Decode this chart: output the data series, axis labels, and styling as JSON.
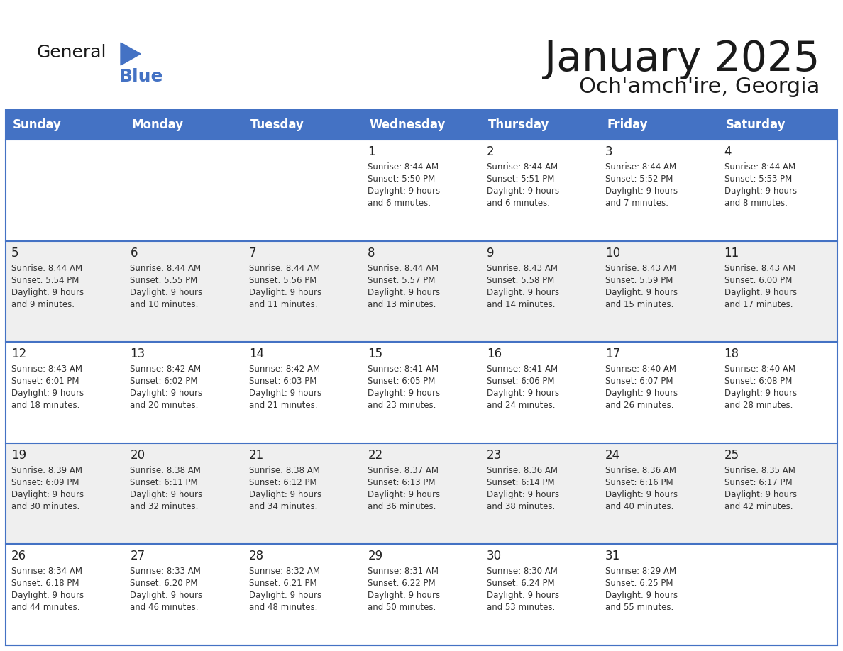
{
  "title": "January 2025",
  "subtitle": "Och'amch'ire, Georgia",
  "days_of_week": [
    "Sunday",
    "Monday",
    "Tuesday",
    "Wednesday",
    "Thursday",
    "Friday",
    "Saturday"
  ],
  "header_bg_color": "#4472C4",
  "header_text_color": "#FFFFFF",
  "cell_bg_color": "#FFFFFF",
  "alt_cell_bg_color": "#EFEFEF",
  "border_color": "#4472C4",
  "day_num_color": "#222222",
  "text_color": "#333333",
  "title_color": "#1a1a1a",
  "logo_general_color": "#1a1a1a",
  "logo_blue_color": "#4472C4",
  "calendar_data": [
    [
      {
        "day": null,
        "sunrise": null,
        "sunset": null,
        "daylight": null
      },
      {
        "day": null,
        "sunrise": null,
        "sunset": null,
        "daylight": null
      },
      {
        "day": null,
        "sunrise": null,
        "sunset": null,
        "daylight": null
      },
      {
        "day": 1,
        "sunrise": "8:44 AM",
        "sunset": "5:50 PM",
        "daylight": "9 hours\nand 6 minutes."
      },
      {
        "day": 2,
        "sunrise": "8:44 AM",
        "sunset": "5:51 PM",
        "daylight": "9 hours\nand 6 minutes."
      },
      {
        "day": 3,
        "sunrise": "8:44 AM",
        "sunset": "5:52 PM",
        "daylight": "9 hours\nand 7 minutes."
      },
      {
        "day": 4,
        "sunrise": "8:44 AM",
        "sunset": "5:53 PM",
        "daylight": "9 hours\nand 8 minutes."
      }
    ],
    [
      {
        "day": 5,
        "sunrise": "8:44 AM",
        "sunset": "5:54 PM",
        "daylight": "9 hours\nand 9 minutes."
      },
      {
        "day": 6,
        "sunrise": "8:44 AM",
        "sunset": "5:55 PM",
        "daylight": "9 hours\nand 10 minutes."
      },
      {
        "day": 7,
        "sunrise": "8:44 AM",
        "sunset": "5:56 PM",
        "daylight": "9 hours\nand 11 minutes."
      },
      {
        "day": 8,
        "sunrise": "8:44 AM",
        "sunset": "5:57 PM",
        "daylight": "9 hours\nand 13 minutes."
      },
      {
        "day": 9,
        "sunrise": "8:43 AM",
        "sunset": "5:58 PM",
        "daylight": "9 hours\nand 14 minutes."
      },
      {
        "day": 10,
        "sunrise": "8:43 AM",
        "sunset": "5:59 PM",
        "daylight": "9 hours\nand 15 minutes."
      },
      {
        "day": 11,
        "sunrise": "8:43 AM",
        "sunset": "6:00 PM",
        "daylight": "9 hours\nand 17 minutes."
      }
    ],
    [
      {
        "day": 12,
        "sunrise": "8:43 AM",
        "sunset": "6:01 PM",
        "daylight": "9 hours\nand 18 minutes."
      },
      {
        "day": 13,
        "sunrise": "8:42 AM",
        "sunset": "6:02 PM",
        "daylight": "9 hours\nand 20 minutes."
      },
      {
        "day": 14,
        "sunrise": "8:42 AM",
        "sunset": "6:03 PM",
        "daylight": "9 hours\nand 21 minutes."
      },
      {
        "day": 15,
        "sunrise": "8:41 AM",
        "sunset": "6:05 PM",
        "daylight": "9 hours\nand 23 minutes."
      },
      {
        "day": 16,
        "sunrise": "8:41 AM",
        "sunset": "6:06 PM",
        "daylight": "9 hours\nand 24 minutes."
      },
      {
        "day": 17,
        "sunrise": "8:40 AM",
        "sunset": "6:07 PM",
        "daylight": "9 hours\nand 26 minutes."
      },
      {
        "day": 18,
        "sunrise": "8:40 AM",
        "sunset": "6:08 PM",
        "daylight": "9 hours\nand 28 minutes."
      }
    ],
    [
      {
        "day": 19,
        "sunrise": "8:39 AM",
        "sunset": "6:09 PM",
        "daylight": "9 hours\nand 30 minutes."
      },
      {
        "day": 20,
        "sunrise": "8:38 AM",
        "sunset": "6:11 PM",
        "daylight": "9 hours\nand 32 minutes."
      },
      {
        "day": 21,
        "sunrise": "8:38 AM",
        "sunset": "6:12 PM",
        "daylight": "9 hours\nand 34 minutes."
      },
      {
        "day": 22,
        "sunrise": "8:37 AM",
        "sunset": "6:13 PM",
        "daylight": "9 hours\nand 36 minutes."
      },
      {
        "day": 23,
        "sunrise": "8:36 AM",
        "sunset": "6:14 PM",
        "daylight": "9 hours\nand 38 minutes."
      },
      {
        "day": 24,
        "sunrise": "8:36 AM",
        "sunset": "6:16 PM",
        "daylight": "9 hours\nand 40 minutes."
      },
      {
        "day": 25,
        "sunrise": "8:35 AM",
        "sunset": "6:17 PM",
        "daylight": "9 hours\nand 42 minutes."
      }
    ],
    [
      {
        "day": 26,
        "sunrise": "8:34 AM",
        "sunset": "6:18 PM",
        "daylight": "9 hours\nand 44 minutes."
      },
      {
        "day": 27,
        "sunrise": "8:33 AM",
        "sunset": "6:20 PM",
        "daylight": "9 hours\nand 46 minutes."
      },
      {
        "day": 28,
        "sunrise": "8:32 AM",
        "sunset": "6:21 PM",
        "daylight": "9 hours\nand 48 minutes."
      },
      {
        "day": 29,
        "sunrise": "8:31 AM",
        "sunset": "6:22 PM",
        "daylight": "9 hours\nand 50 minutes."
      },
      {
        "day": 30,
        "sunrise": "8:30 AM",
        "sunset": "6:24 PM",
        "daylight": "9 hours\nand 53 minutes."
      },
      {
        "day": 31,
        "sunrise": "8:29 AM",
        "sunset": "6:25 PM",
        "daylight": "9 hours\nand 55 minutes."
      },
      {
        "day": null,
        "sunrise": null,
        "sunset": null,
        "daylight": null
      }
    ]
  ]
}
